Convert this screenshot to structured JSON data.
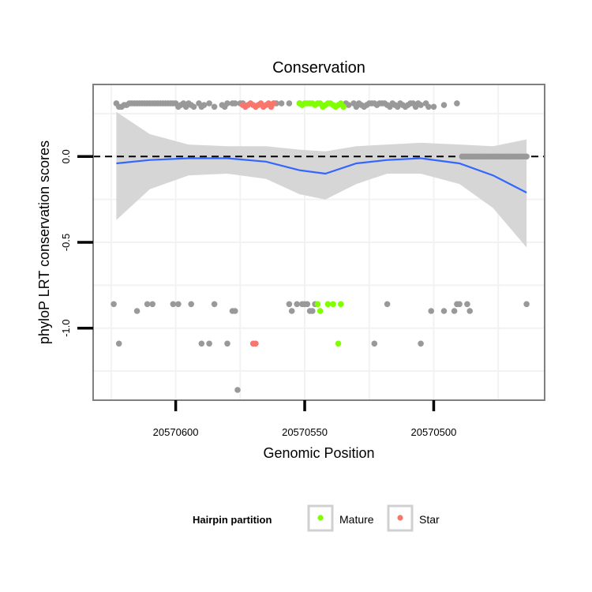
{
  "chart_data": {
    "type": "scatter",
    "title": "Conservation",
    "xlabel": "Genomic Position",
    "ylabel": "phyloP LRT conservation scores",
    "xlim": [
      20570632,
      20570457
    ],
    "ylim": [
      -1.42,
      0.42
    ],
    "x_reversed": true,
    "x_ticks": [
      20570600,
      20570550,
      20570500
    ],
    "x_tick_labels": [
      "20570600",
      "20570550",
      "20570500"
    ],
    "y_ticks": [
      0.0,
      -0.5,
      -1.0
    ],
    "y_tick_labels": [
      "0.0",
      "-0.5",
      "-1.0"
    ],
    "reference_line": {
      "y": 0,
      "style": "dashed",
      "color": "#000000"
    },
    "grid": true,
    "colors": {
      "none": "#999999",
      "Mature": "#7fff00",
      "Star": "#f8766d",
      "smooth": "#3366ff",
      "band": "#d4d4d4",
      "panel_border": "#7f7f7f",
      "grid": "#f2f2f2"
    },
    "legend": {
      "title": "Hairpin partition",
      "position": "bottom",
      "entries": [
        {
          "label": "Mature",
          "color": "#7fff00"
        },
        {
          "label": "Star",
          "color": "#f8766d"
        }
      ]
    },
    "smooth": {
      "x": [
        20570623,
        20570610,
        20570595,
        20570580,
        20570565,
        20570552,
        20570542,
        20570530,
        20570518,
        20570505,
        20570490,
        20570477,
        20570464
      ],
      "y": [
        -0.04,
        -0.02,
        -0.01,
        -0.01,
        -0.03,
        -0.08,
        -0.1,
        -0.04,
        -0.02,
        -0.01,
        -0.04,
        -0.11,
        -0.21
      ],
      "upper": [
        0.26,
        0.13,
        0.07,
        0.06,
        0.06,
        0.04,
        0.03,
        0.06,
        0.07,
        0.08,
        0.07,
        0.06,
        0.1
      ],
      "lower": [
        -0.37,
        -0.19,
        -0.11,
        -0.1,
        -0.13,
        -0.22,
        -0.25,
        -0.16,
        -0.1,
        -0.1,
        -0.16,
        -0.3,
        -0.53
      ]
    },
    "series": [
      {
        "name": "none",
        "points": [
          [
            20570623,
            0.31
          ],
          [
            20570622,
            0.29
          ],
          [
            20570621,
            0.29
          ],
          [
            20570620,
            0.3
          ],
          [
            20570619,
            0.3
          ],
          [
            20570618,
            0.31
          ],
          [
            20570617,
            0.31
          ],
          [
            20570616,
            0.31
          ],
          [
            20570615,
            0.31
          ],
          [
            20570614,
            0.31
          ],
          [
            20570613,
            0.31
          ],
          [
            20570612,
            0.31
          ],
          [
            20570611,
            0.31
          ],
          [
            20570610,
            0.31
          ],
          [
            20570609,
            0.31
          ],
          [
            20570608,
            0.31
          ],
          [
            20570607,
            0.31
          ],
          [
            20570606,
            0.31
          ],
          [
            20570605,
            0.31
          ],
          [
            20570604,
            0.31
          ],
          [
            20570603,
            0.31
          ],
          [
            20570602,
            0.31
          ],
          [
            20570601,
            0.31
          ],
          [
            20570600,
            0.31
          ],
          [
            20570599,
            0.29
          ],
          [
            20570598,
            0.3
          ],
          [
            20570597,
            0.31
          ],
          [
            20570596,
            0.29
          ],
          [
            20570595,
            0.31
          ],
          [
            20570594,
            0.3
          ],
          [
            20570593,
            0.29
          ],
          [
            20570591,
            0.31
          ],
          [
            20570590,
            0.29
          ],
          [
            20570589,
            0.3
          ],
          [
            20570587,
            0.31
          ],
          [
            20570585,
            0.29
          ],
          [
            20570582,
            0.3
          ],
          [
            20570581,
            0.29
          ],
          [
            20570580,
            0.31
          ],
          [
            20570578,
            0.31
          ],
          [
            20570577,
            0.31
          ],
          [
            20570575,
            0.31
          ],
          [
            20570574,
            0.31
          ],
          [
            20570562,
            0.31
          ],
          [
            20570561,
            0.31
          ],
          [
            20570559,
            0.31
          ],
          [
            20570556,
            0.31
          ],
          [
            20570552,
            0.31
          ],
          [
            20570534,
            0.31
          ],
          [
            20570533,
            0.3
          ],
          [
            20570531,
            0.31
          ],
          [
            20570530,
            0.29
          ],
          [
            20570529,
            0.31
          ],
          [
            20570528,
            0.3
          ],
          [
            20570527,
            0.29
          ],
          [
            20570526,
            0.3
          ],
          [
            20570525,
            0.31
          ],
          [
            20570524,
            0.31
          ],
          [
            20570523,
            0.31
          ],
          [
            20570522,
            0.3
          ],
          [
            20570521,
            0.31
          ],
          [
            20570520,
            0.31
          ],
          [
            20570519,
            0.31
          ],
          [
            20570518,
            0.3
          ],
          [
            20570517,
            0.29
          ],
          [
            20570516,
            0.31
          ],
          [
            20570515,
            0.3
          ],
          [
            20570514,
            0.29
          ],
          [
            20570513,
            0.31
          ],
          [
            20570512,
            0.3
          ],
          [
            20570511,
            0.29
          ],
          [
            20570510,
            0.3
          ],
          [
            20570509,
            0.31
          ],
          [
            20570508,
            0.31
          ],
          [
            20570507,
            0.29
          ],
          [
            20570506,
            0.31
          ],
          [
            20570505,
            0.3
          ],
          [
            20570503,
            0.31
          ],
          [
            20570502,
            0.29
          ],
          [
            20570500,
            0.29
          ],
          [
            20570496,
            0.3
          ],
          [
            20570491,
            0.31
          ],
          [
            20570489,
            0.0
          ],
          [
            20570488,
            0.0
          ],
          [
            20570487,
            0.0
          ],
          [
            20570486,
            0.0
          ],
          [
            20570485,
            0.0
          ],
          [
            20570484,
            0.0
          ],
          [
            20570483,
            0.0
          ],
          [
            20570482,
            0.0
          ],
          [
            20570481,
            0.0
          ],
          [
            20570480,
            0.0
          ],
          [
            20570479,
            0.0
          ],
          [
            20570478,
            0.0
          ],
          [
            20570477,
            0.0
          ],
          [
            20570476,
            0.0
          ],
          [
            20570475,
            0.0
          ],
          [
            20570474,
            0.0
          ],
          [
            20570473,
            0.0
          ],
          [
            20570472,
            0.0
          ],
          [
            20570471,
            0.0
          ],
          [
            20570470,
            0.0
          ],
          [
            20570469,
            0.0
          ],
          [
            20570468,
            0.0
          ],
          [
            20570467,
            0.0
          ],
          [
            20570466,
            0.0
          ],
          [
            20570465,
            0.0
          ],
          [
            20570464,
            0.0
          ],
          [
            20570624,
            -0.86
          ],
          [
            20570622,
            -1.09
          ],
          [
            20570615,
            -0.9
          ],
          [
            20570611,
            -0.86
          ],
          [
            20570609,
            -0.86
          ],
          [
            20570601,
            -0.86
          ],
          [
            20570599,
            -0.86
          ],
          [
            20570594,
            -0.86
          ],
          [
            20570590,
            -1.09
          ],
          [
            20570587,
            -1.09
          ],
          [
            20570585,
            -0.86
          ],
          [
            20570580,
            -1.09
          ],
          [
            20570578,
            -0.9
          ],
          [
            20570577,
            -0.9
          ],
          [
            20570576,
            -1.36
          ],
          [
            20570556,
            -0.86
          ],
          [
            20570555,
            -0.9
          ],
          [
            20570553,
            -0.86
          ],
          [
            20570551,
            -0.86
          ],
          [
            20570550,
            -0.86
          ],
          [
            20570549,
            -0.86
          ],
          [
            20570548,
            -0.9
          ],
          [
            20570547,
            -0.9
          ],
          [
            20570546,
            -0.86
          ],
          [
            20570523,
            -1.09
          ],
          [
            20570518,
            -0.86
          ],
          [
            20570505,
            -1.09
          ],
          [
            20570501,
            -0.9
          ],
          [
            20570496,
            -0.9
          ],
          [
            20570492,
            -0.9
          ],
          [
            20570491,
            -0.86
          ],
          [
            20570490,
            -0.86
          ],
          [
            20570487,
            -0.86
          ],
          [
            20570486,
            -0.9
          ],
          [
            20570464,
            -0.86
          ]
        ]
      },
      {
        "name": "Mature",
        "points": [
          [
            20570552,
            0.31
          ],
          [
            20570551,
            0.3
          ],
          [
            20570550,
            0.31
          ],
          [
            20570549,
            0.31
          ],
          [
            20570548,
            0.31
          ],
          [
            20570547,
            0.31
          ],
          [
            20570546,
            0.3
          ],
          [
            20570545,
            0.31
          ],
          [
            20570544,
            0.31
          ],
          [
            20570543,
            0.29
          ],
          [
            20570542,
            0.3
          ],
          [
            20570541,
            0.31
          ],
          [
            20570540,
            0.31
          ],
          [
            20570539,
            0.3
          ],
          [
            20570538,
            0.29
          ],
          [
            20570537,
            0.3
          ],
          [
            20570536,
            0.31
          ],
          [
            20570535,
            0.29
          ],
          [
            20570545,
            -0.86
          ],
          [
            20570544,
            -0.9
          ],
          [
            20570541,
            -0.86
          ],
          [
            20570539,
            -0.86
          ],
          [
            20570536,
            -0.86
          ],
          [
            20570537,
            -1.09
          ]
        ]
      },
      {
        "name": "Star",
        "points": [
          [
            20570574,
            0.3
          ],
          [
            20570573,
            0.29
          ],
          [
            20570572,
            0.3
          ],
          [
            20570571,
            0.31
          ],
          [
            20570570,
            0.3
          ],
          [
            20570569,
            0.29
          ],
          [
            20570568,
            0.3
          ],
          [
            20570567,
            0.31
          ],
          [
            20570566,
            0.29
          ],
          [
            20570565,
            0.3
          ],
          [
            20570564,
            0.31
          ],
          [
            20570563,
            0.29
          ],
          [
            20570562,
            0.31
          ],
          [
            20570570,
            -1.09
          ],
          [
            20570569,
            -1.09
          ]
        ]
      }
    ]
  }
}
